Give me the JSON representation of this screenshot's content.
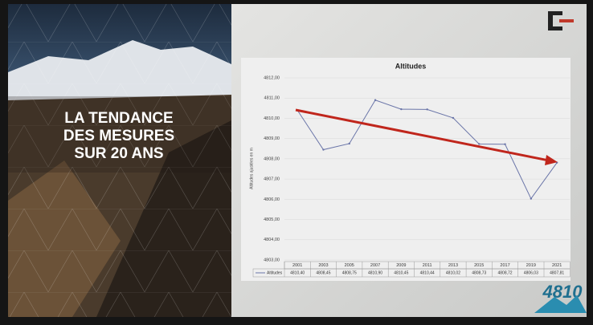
{
  "slide": {
    "heading": [
      "LA TENDANCE",
      "DES MESURES",
      "SUR 20 ANS"
    ],
    "logo": "4810"
  },
  "chart_data": {
    "type": "line",
    "title": "Altitudes",
    "y_label": "Altitudes ajustées en m",
    "categories": [
      "2001",
      "2003",
      "2005",
      "2007",
      "2009",
      "2011",
      "2013",
      "2015",
      "2017",
      "2019",
      "2021"
    ],
    "series": [
      {
        "name": "Altitudes",
        "color": "#6a75a8",
        "values": [
          4810.4,
          4808.45,
          4808.75,
          4810.9,
          4810.45,
          4810.44,
          4810.02,
          4808.73,
          4808.72,
          4806.03,
          4807.81
        ],
        "value_labels": [
          "4810,40",
          "4808,45",
          "4808,75",
          "4810,90",
          "4810,45",
          "4810,44",
          "4810,02",
          "4808,73",
          "4808,72",
          "4806,03",
          "4807,81"
        ]
      }
    ],
    "ylim": [
      4803,
      4812
    ],
    "yticks": [
      {
        "value": 4803,
        "label": "4803,00"
      },
      {
        "value": 4804,
        "label": "4804,00"
      },
      {
        "value": 4805,
        "label": "4805,00"
      },
      {
        "value": 4806,
        "label": "4806,00"
      },
      {
        "value": 4807,
        "label": "4807,00"
      },
      {
        "value": 4808,
        "label": "4808,00"
      },
      {
        "value": 4809,
        "label": "4809,00"
      },
      {
        "value": 4810,
        "label": "4810,00"
      },
      {
        "value": 4811,
        "label": "4811,00"
      },
      {
        "value": 4812,
        "label": "4812,00"
      }
    ],
    "grid": true
  }
}
